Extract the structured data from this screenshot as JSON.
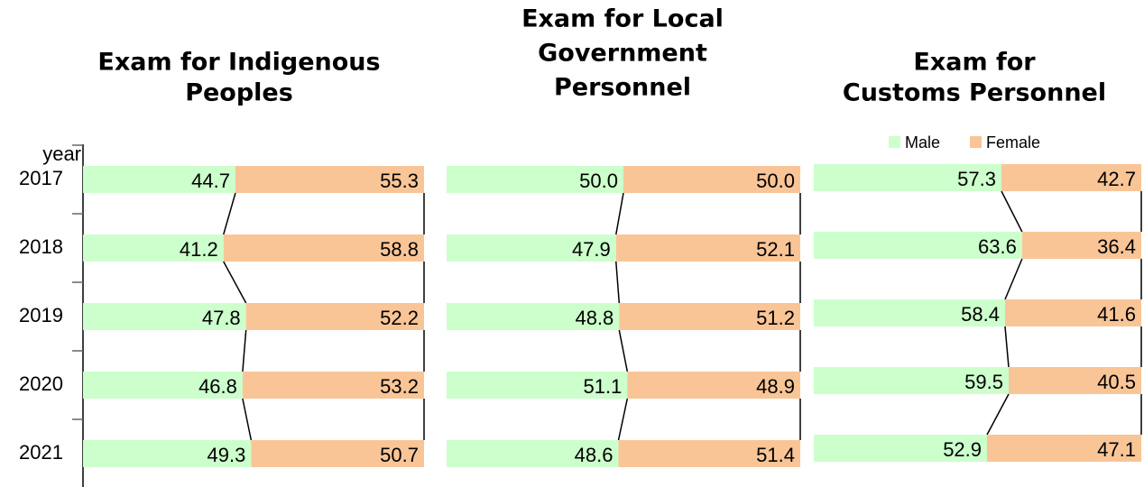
{
  "chart_data": [
    {
      "type": "bar",
      "title": [
        "Exam for Indigenous",
        "Peoples"
      ],
      "y_label": "year",
      "categories": [
        "2017",
        "2018",
        "2019",
        "2020",
        "2021"
      ],
      "xlim": [
        0,
        100
      ],
      "series": [
        {
          "name": "Male",
          "color": "#ccffcc",
          "values": [
            44.7,
            41.2,
            47.8,
            46.8,
            49.3
          ]
        },
        {
          "name": "Female",
          "color": "#f9c597",
          "values": [
            55.3,
            58.8,
            52.2,
            53.2,
            50.7
          ]
        }
      ]
    },
    {
      "type": "bar",
      "title": [
        "Exam for Local",
        "Government",
        "Personnel"
      ],
      "xlim": [
        0,
        100
      ],
      "series": [
        {
          "name": "Male",
          "color": "#ccffcc",
          "values": [
            50.0,
            47.9,
            48.8,
            51.1,
            48.6
          ],
          "value_labels": [
            "50.0",
            "47.9",
            "48.8",
            "51.1",
            "48.6"
          ]
        },
        {
          "name": "Female",
          "color": "#f9c597",
          "values": [
            50.0,
            52.1,
            51.2,
            48.9,
            51.4
          ],
          "value_labels": [
            "50.0",
            "52.1",
            "51.2",
            "48.9",
            "51.4"
          ]
        }
      ]
    },
    {
      "type": "bar",
      "title": [
        "Exam for",
        "Customs Personnel"
      ],
      "xlim": [
        0,
        100
      ],
      "legend": "top",
      "series": [
        {
          "name": "Male",
          "color": "#ccffcc",
          "values": [
            57.3,
            63.6,
            58.4,
            59.5,
            52.9
          ]
        },
        {
          "name": "Female",
          "color": "#f9c597",
          "values": [
            42.7,
            36.4,
            41.6,
            40.5,
            47.1
          ]
        }
      ]
    }
  ]
}
